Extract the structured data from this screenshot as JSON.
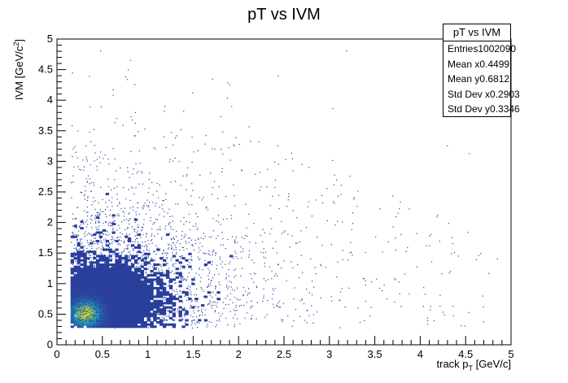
{
  "chart_data": {
    "type": "heatmap",
    "title": "pT vs IVM",
    "xlabel_main": "track p",
    "xlabel_sub": "T",
    "xlabel_unit": " [GeV/c]",
    "ylabel_main": "IVM [GeV/c",
    "ylabel_sup": "2",
    "ylabel_end": "]",
    "xlim": [
      0,
      5
    ],
    "ylim": [
      0,
      5
    ],
    "x_ticks": [
      "0",
      "0.5",
      "1",
      "1.5",
      "2",
      "2.5",
      "3",
      "3.5",
      "4",
      "4.5",
      "5"
    ],
    "y_ticks": [
      "0",
      "0.5",
      "1",
      "1.5",
      "2",
      "2.5",
      "3",
      "3.5",
      "4",
      "4.5",
      "5"
    ],
    "grid": false,
    "colors": {
      "low": "#2a3f9c",
      "mid": "#2196b8",
      "high": "#b8d23c"
    },
    "density_peak": [
      0.3,
      0.5
    ],
    "support_limits": {
      "x_min": 0.15,
      "y_min": 0.28
    }
  },
  "stats": {
    "title": "pT vs IVM",
    "rows": [
      {
        "label": "Entries",
        "value": "1002090"
      },
      {
        "label": "Mean x",
        "value": "0.4499"
      },
      {
        "label": "Mean y",
        "value": "0.6812"
      },
      {
        "label": "Std Dev x",
        "value": "0.2903"
      },
      {
        "label": "Std Dev y",
        "value": "0.3346"
      }
    ]
  }
}
